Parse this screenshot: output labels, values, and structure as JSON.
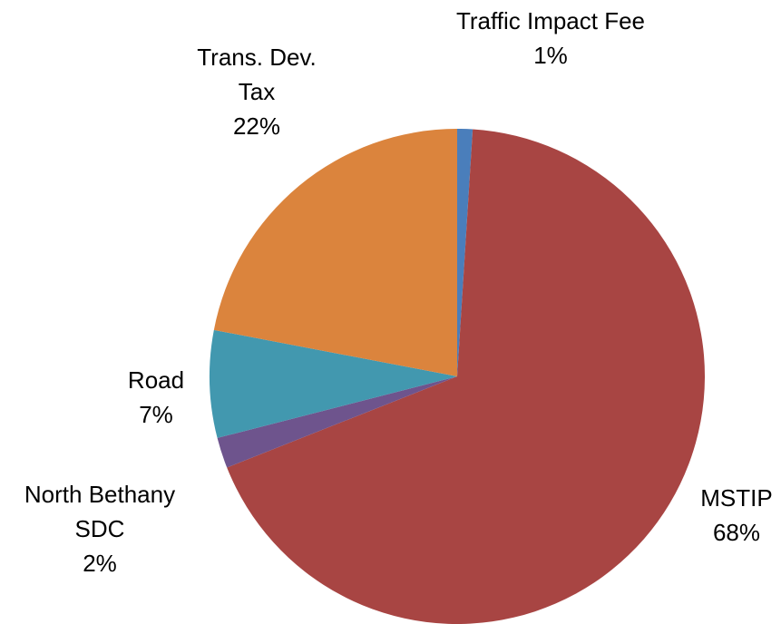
{
  "chart_data": {
    "type": "pie",
    "categories": [
      "Traffic Impact Fee",
      "MSTIP",
      "North Bethany SDC",
      "Road",
      "Trans. Dev. Tax"
    ],
    "values": [
      1,
      68,
      2,
      7,
      22
    ],
    "value_labels": [
      "1%",
      "68%",
      "2%",
      "7%",
      "22%"
    ],
    "colors": [
      "#4a7ebb",
      "#a84543",
      "#6e548d",
      "#4298af",
      "#db843d"
    ]
  }
}
